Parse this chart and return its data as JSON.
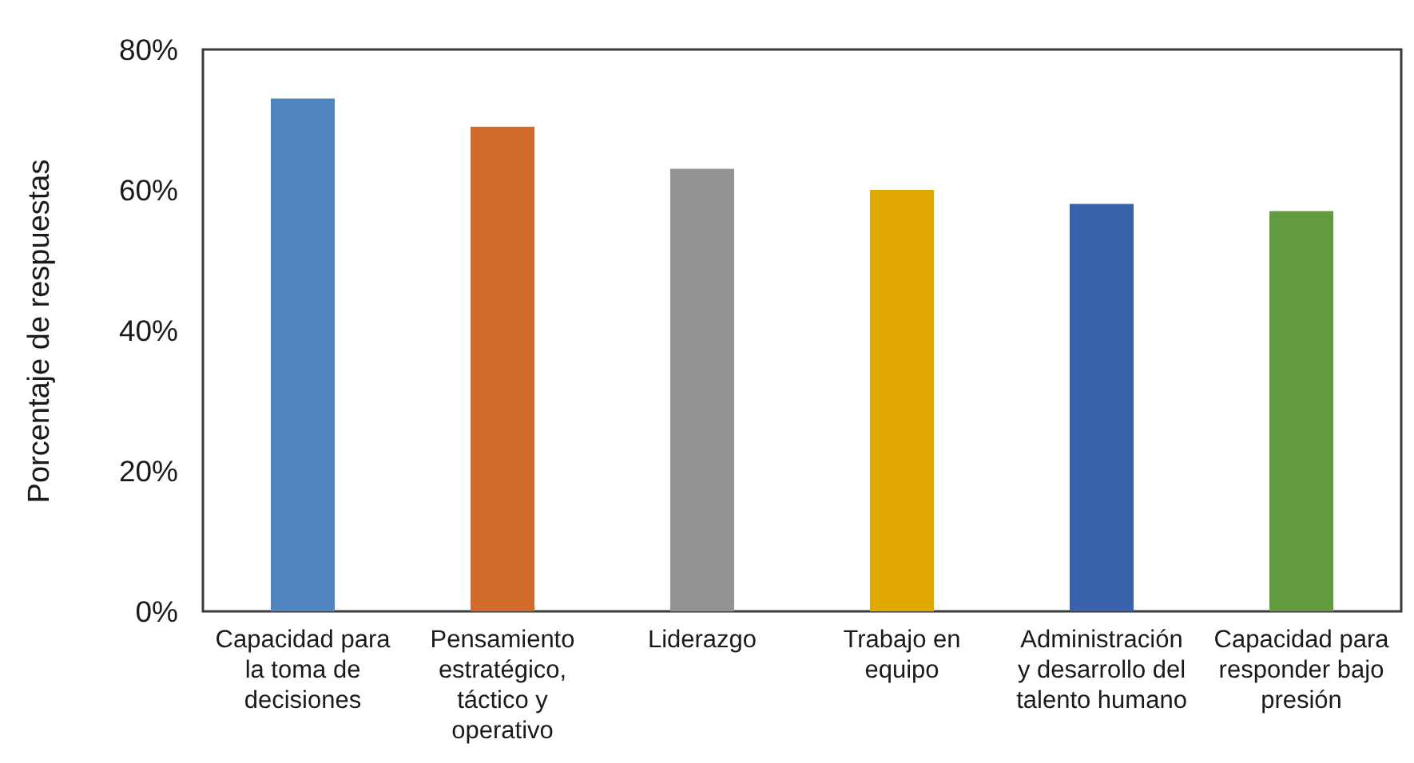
{
  "chart_data": {
    "type": "bar",
    "ylabel": "Porcentaje de respuestas",
    "categories": [
      "Capacidad para la toma de decisiones",
      "Pensamiento estratégico, táctico y operativo",
      "Liderazgo",
      "Trabajo en equipo",
      "Administración y desarrollo del talento humano",
      "Capacidad para responder bajo presión"
    ],
    "values": [
      73,
      69,
      63,
      60,
      58,
      57
    ],
    "colors": [
      "#4f86c0",
      "#d26b2c",
      "#939393",
      "#e0a800",
      "#3a62ab",
      "#619a3f"
    ],
    "ylim": [
      0,
      80
    ],
    "yticks": [
      {
        "value": 0,
        "label": "0%"
      },
      {
        "value": 20,
        "label": "20%"
      },
      {
        "value": 40,
        "label": "40%"
      },
      {
        "value": 60,
        "label": "60%"
      },
      {
        "value": 80,
        "label": "80%"
      }
    ]
  }
}
